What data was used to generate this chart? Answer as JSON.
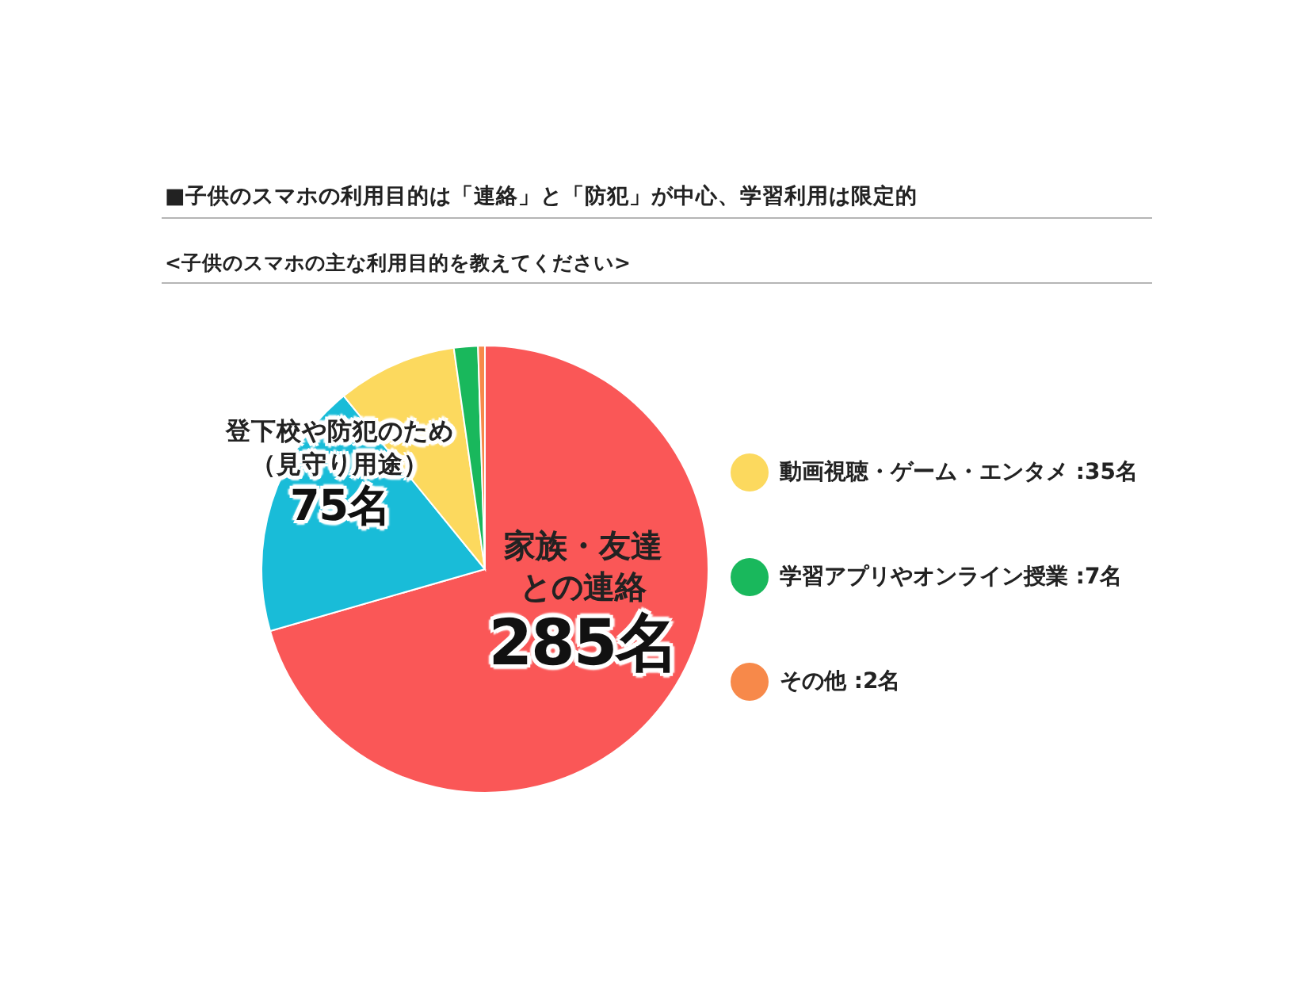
{
  "chart_data": {
    "type": "pie",
    "title": "■子供のスマホの利用目的は「連絡」と「防犯」が中心、学習利用は限定的",
    "subtitle": "<子供のスマホの主な利用目的を教えてください>",
    "categories": [
      "家族・友達との連絡",
      "登下校や防犯のため（見守り用途）",
      "動画視聴・ゲーム・エンタメ",
      "学習アプリやオンライン授業",
      "その他"
    ],
    "values": [
      285,
      75,
      35,
      7,
      2
    ],
    "colors": [
      "#fa5757",
      "#19bcd8",
      "#fcd95e",
      "#19b85c",
      "#f7894a"
    ],
    "value_labels": [
      "285名",
      "75名",
      ":35名",
      ":7名",
      ":2名"
    ],
    "legend": "right"
  }
}
